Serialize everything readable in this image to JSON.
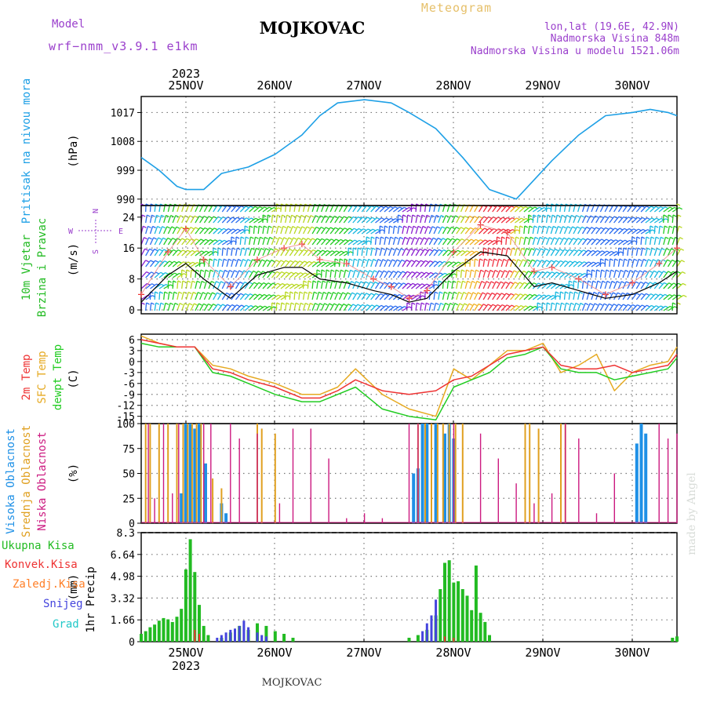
{
  "header": {
    "model_label": "Model",
    "model_name": "wrf−nmm_v3.9.1  e1km",
    "title": "MOJKOVAC",
    "meteogram": "Meteogram",
    "lonlat": "lon,lat (19.6E, 42.9N)",
    "elevation": "Nadmorska Visina 848m",
    "model_elevation": "Nadmorska Visina u modelu 1521.06m",
    "footer": "MOJKOVAC",
    "watermark": "made by Angel"
  },
  "time_axis": {
    "year": "2023",
    "day_labels": [
      "25NOV",
      "26NOV",
      "27NOV",
      "28NOV",
      "29NOV",
      "30NOV"
    ]
  },
  "colors": {
    "pressure": "#1ea0e6",
    "temp2m": "#ee3333",
    "sfc_temp": "#e6aa22",
    "dewpt": "#22cc22",
    "high_cloud": "#1e90e6",
    "mid_cloud": "#e0a020",
    "low_cloud": "#cc1a80",
    "total_precip": "#22bb22",
    "conv_precip": "#ee3333",
    "frz_precip": "#ff7f27",
    "snow": "#4444dd",
    "graupel": "#22c8c8"
  },
  "chart_data": [
    {
      "type": "line",
      "panel": "pressure",
      "ylabel_side": "Pritisak na nivou mora",
      "unit": "(hPa)",
      "ylim": [
        988,
        1022
      ],
      "yticks": [
        "990",
        "999",
        "1008",
        "1017"
      ],
      "series": [
        {
          "x": [
            0,
            0.2,
            0.4,
            0.5,
            0.7,
            0.9,
            1.2,
            1.5,
            1.8,
            2.0,
            2.2,
            2.5,
            2.8,
            3.0,
            3.3,
            3.6,
            3.9,
            4.2,
            4.3,
            4.6,
            4.9,
            5.2,
            5.5,
            5.7,
            5.9,
            6.0
          ],
          "y": [
            1003,
            999,
            994,
            993,
            993,
            998,
            1000,
            1004,
            1010,
            1016,
            1020,
            1021,
            1020,
            1017,
            1012,
            1003,
            993,
            990,
            993,
            1002,
            1010,
            1016,
            1017,
            1018,
            1017,
            1016
          ]
        }
      ]
    },
    {
      "type": "line",
      "panel": "wind",
      "ylabel_side": [
        "10m Vjetar",
        "Brzina i Pravac"
      ],
      "unit": "(m/s)",
      "compass_labels": {
        "north": "N",
        "south": "S",
        "west": "W",
        "east": "E"
      },
      "ylim": [
        -1,
        27
      ],
      "yticks": [
        "0",
        "8",
        "16",
        "24"
      ],
      "series": [
        {
          "name_hint": "speed",
          "x": [
            0,
            0.3,
            0.5,
            0.7,
            1.0,
            1.3,
            1.6,
            1.8,
            2.0,
            2.3,
            2.6,
            2.8,
            3.0,
            3.2,
            3.5,
            3.8,
            4.1,
            4.4,
            4.6,
            4.9,
            5.2,
            5.5,
            5.8,
            6.0
          ],
          "y": [
            2,
            9,
            12,
            8,
            3,
            9,
            11,
            11,
            8,
            7,
            5,
            4,
            2,
            3,
            10,
            15,
            14,
            6,
            7,
            5,
            3,
            4,
            7,
            10
          ]
        },
        {
          "name_hint": "gust",
          "x": [
            0,
            0.3,
            0.5,
            0.7,
            1.0,
            1.3,
            1.6,
            1.8,
            2.0,
            2.3,
            2.6,
            2.8,
            3.0,
            3.2,
            3.5,
            3.8,
            4.1,
            4.4,
            4.6,
            4.9,
            5.2,
            5.5,
            5.8,
            6.0
          ],
          "y": [
            4,
            15,
            21,
            13,
            6,
            13,
            16,
            17,
            13,
            12,
            8,
            6,
            3,
            5,
            15,
            22,
            20,
            10,
            11,
            8,
            4,
            7,
            12,
            16
          ]
        }
      ]
    },
    {
      "type": "line",
      "panel": "temperature",
      "ylabel_side": [
        "2m Temp",
        "SFC Temp",
        "dewpt Temp"
      ],
      "unit": "(C)",
      "ylim": [
        -17,
        7.5
      ],
      "yticks": [
        "-15",
        "-12",
        "-9",
        "-6",
        "-3",
        "0",
        "3",
        "6"
      ],
      "series": [
        {
          "name": "2m Temp",
          "x": [
            0,
            0.2,
            0.4,
            0.6,
            0.8,
            1.0,
            1.2,
            1.5,
            1.8,
            2.0,
            2.2,
            2.4,
            2.7,
            3.0,
            3.3,
            3.5,
            3.7,
            3.9,
            4.1,
            4.3,
            4.5,
            4.7,
            4.9,
            5.1,
            5.3,
            5.5,
            5.7,
            5.9,
            6.0
          ],
          "y": [
            6,
            5,
            4,
            4,
            -2,
            -3,
            -5,
            -7,
            -10,
            -10,
            -8,
            -5,
            -8,
            -9,
            -8,
            -5,
            -4,
            -1,
            2,
            3,
            4,
            -1,
            -2,
            -2,
            -1,
            -3,
            -2,
            -1,
            2
          ]
        },
        {
          "name": "SFC Temp",
          "x": [
            0,
            0.2,
            0.4,
            0.6,
            0.8,
            1.0,
            1.2,
            1.5,
            1.8,
            2.0,
            2.2,
            2.4,
            2.7,
            3.0,
            3.3,
            3.5,
            3.7,
            3.9,
            4.1,
            4.3,
            4.5,
            4.7,
            4.9,
            5.1,
            5.3,
            5.5,
            5.7,
            5.9,
            6.0
          ],
          "y": [
            7,
            5,
            4,
            4,
            -1,
            -2,
            -4,
            -6,
            -9,
            -9,
            -7,
            -2,
            -9,
            -13,
            -15,
            -2,
            -5,
            -1,
            3,
            3,
            5,
            -3,
            -1,
            2,
            -8,
            -3,
            -1,
            0,
            4
          ]
        },
        {
          "name": "dewpt Temp",
          "x": [
            0,
            0.2,
            0.4,
            0.6,
            0.8,
            1.0,
            1.2,
            1.5,
            1.8,
            2.0,
            2.2,
            2.4,
            2.7,
            3.0,
            3.3,
            3.5,
            3.7,
            3.9,
            4.1,
            4.3,
            4.5,
            4.7,
            4.9,
            5.1,
            5.3,
            5.5,
            5.7,
            5.9,
            6.0
          ],
          "y": [
            5,
            4,
            4,
            4,
            -3,
            -4,
            -6,
            -9,
            -11,
            -11,
            -9,
            -7,
            -13,
            -15,
            -16,
            -7,
            -5,
            -3,
            1,
            2,
            4,
            -2,
            -3,
            -3,
            -5,
            -4,
            -3,
            -2,
            1
          ]
        }
      ]
    },
    {
      "type": "bar",
      "panel": "clouds",
      "ylabel_side": [
        "Visoka Oblacnost",
        "Srednja Oblacnost",
        "Niska Oblacnost"
      ],
      "unit": "(%)",
      "ylim": [
        0,
        100
      ],
      "yticks": [
        "0",
        "25",
        "50",
        "75",
        "100"
      ],
      "series": [
        {
          "name": "Visoka Oblacnost",
          "x": [
            0.45,
            0.5,
            0.55,
            0.6,
            0.65,
            0.72,
            0.9,
            0.95,
            3.05,
            3.1,
            3.15,
            3.2,
            3.3,
            3.4,
            3.45,
            3.5,
            5.55,
            5.6,
            5.65
          ],
          "y": [
            30,
            100,
            100,
            95,
            100,
            60,
            20,
            10,
            50,
            55,
            100,
            100,
            100,
            90,
            100,
            85,
            80,
            100,
            90
          ]
        },
        {
          "name": "Srednja Oblacnost",
          "x": [
            0.05,
            0.1,
            0.2,
            0.3,
            0.4,
            0.47,
            0.52,
            0.57,
            0.62,
            0.67,
            0.8,
            0.9,
            1.3,
            1.35,
            1.5,
            3.1,
            3.18,
            3.25,
            3.32,
            3.38,
            3.45,
            3.52,
            3.6,
            4.3,
            4.35,
            4.45,
            4.7,
            4.75
          ],
          "y": [
            100,
            100,
            100,
            100,
            100,
            100,
            100,
            100,
            100,
            100,
            45,
            35,
            100,
            95,
            90,
            100,
            100,
            100,
            100,
            100,
            100,
            100,
            100,
            100,
            100,
            95,
            100,
            100
          ]
        },
        {
          "name": "Niska Oblacnost",
          "x": [
            0.08,
            0.15,
            0.25,
            0.35,
            0.42,
            0.7,
            0.78,
            1.0,
            1.1,
            1.3,
            1.55,
            1.7,
            1.9,
            2.1,
            2.3,
            2.5,
            2.7,
            3.0,
            3.1,
            3.5,
            3.8,
            4.0,
            4.2,
            4.4,
            4.6,
            4.75,
            4.9,
            5.1,
            5.3,
            5.8,
            5.9,
            6.0
          ],
          "y": [
            100,
            25,
            100,
            30,
            100,
            100,
            100,
            100,
            85,
            90,
            20,
            95,
            95,
            65,
            5,
            10,
            5,
            100,
            100,
            100,
            90,
            65,
            40,
            20,
            30,
            100,
            85,
            10,
            50,
            100,
            85,
            90
          ]
        }
      ]
    },
    {
      "type": "bar",
      "panel": "precipitation",
      "ylabel_side": "1hr Precip",
      "unit": "(mm)",
      "legend": [
        "Ukupna Kisa",
        "Konvek.Kisa",
        "Zaledj.Kisa",
        "Snijeg",
        "Grad"
      ],
      "ylim": [
        0,
        8.3
      ],
      "yticks": [
        "0",
        "1.66",
        "3.32",
        "4.98",
        "6.64",
        "8.3"
      ],
      "series": [
        {
          "name": "Ukupna Kisa",
          "x": [
            0.0,
            0.05,
            0.1,
            0.15,
            0.2,
            0.25,
            0.3,
            0.35,
            0.4,
            0.45,
            0.5,
            0.55,
            0.6,
            0.65,
            0.7,
            0.75,
            0.9,
            1.0,
            1.1,
            1.2,
            1.3,
            1.4,
            1.5,
            1.6,
            1.7,
            3.0,
            3.1,
            3.2,
            3.3,
            3.35,
            3.4,
            3.45,
            3.5,
            3.55,
            3.6,
            3.65,
            3.7,
            3.75,
            3.8,
            3.85,
            3.9,
            5.95,
            6.0
          ],
          "y": [
            0.6,
            0.8,
            1.1,
            1.3,
            1.6,
            1.8,
            1.7,
            1.5,
            1.9,
            2.5,
            5.5,
            7.8,
            5.3,
            2.8,
            1.2,
            0.5,
            0.3,
            0.7,
            1.2,
            0.9,
            1.4,
            1.2,
            0.8,
            0.6,
            0.3,
            0.3,
            0.5,
            0.9,
            2.0,
            4.0,
            6.0,
            6.2,
            4.5,
            4.6,
            4.0,
            3.5,
            2.4,
            5.8,
            2.2,
            1.5,
            0.5,
            0.3,
            0.4
          ]
        },
        {
          "name": "Konvek.Kisa",
          "x": [
            0.6,
            0.65,
            3.4,
            3.5
          ],
          "y": [
            0.9,
            0.6,
            0.4,
            0.3
          ]
        },
        {
          "name": "Snijeg",
          "x": [
            0.85,
            0.9,
            0.95,
            1.0,
            1.05,
            1.1,
            1.15,
            1.2,
            1.3,
            1.35,
            1.4,
            3.15,
            3.2,
            3.25,
            3.3
          ],
          "y": [
            0.3,
            0.5,
            0.7,
            0.9,
            1.0,
            1.2,
            1.6,
            1.1,
            0.7,
            0.5,
            0.4,
            0.8,
            1.4,
            2.0,
            3.2
          ]
        }
      ]
    }
  ]
}
